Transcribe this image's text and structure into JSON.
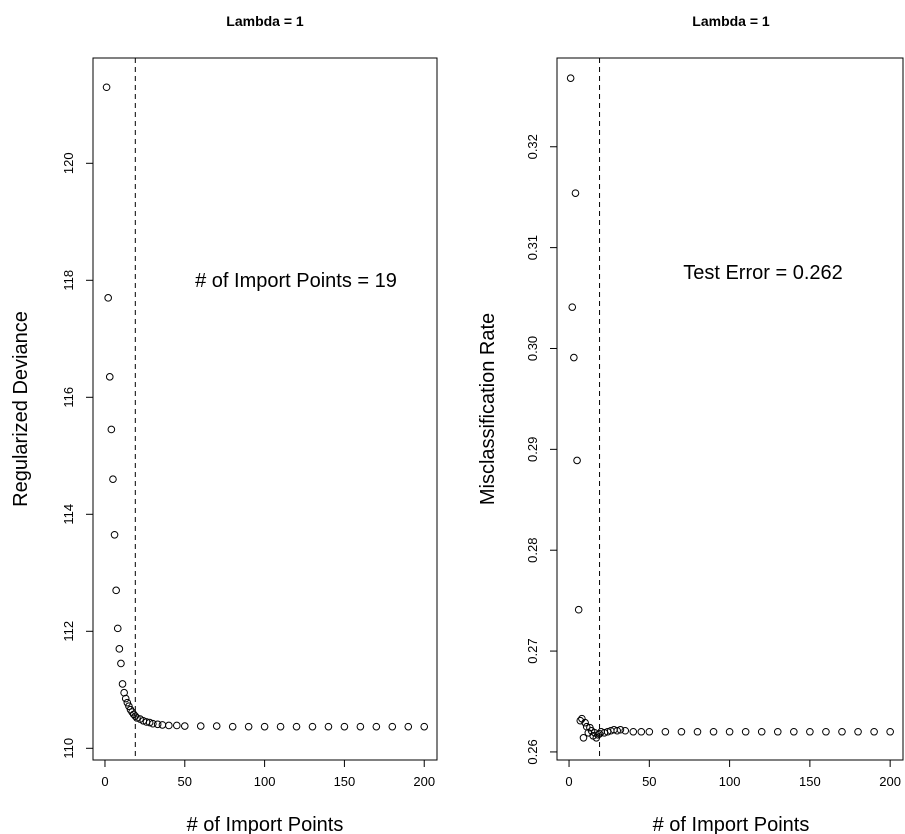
{
  "chart_data": [
    {
      "type": "scatter",
      "title": "Lambda = 1",
      "xlabel": "# of Import Points",
      "ylabel": "Regularized Deviance",
      "xlim": [
        -7.5,
        208
      ],
      "ylim": [
        109.8,
        121.8
      ],
      "xticks": [
        0,
        50,
        100,
        150,
        200
      ],
      "yticks": [
        110,
        112,
        114,
        116,
        118,
        120
      ],
      "vline_x": 19,
      "annotation": "# of Import Points = 19",
      "grid": false,
      "series": [
        {
          "x": [
            1,
            2,
            3,
            4,
            5,
            6,
            7,
            8,
            9,
            10,
            11,
            12,
            13,
            14,
            15,
            16,
            17,
            18,
            19,
            20,
            22,
            24,
            26,
            28,
            30,
            33,
            36,
            40,
            45,
            50,
            60,
            70,
            80,
            90,
            100,
            110,
            120,
            130,
            140,
            150,
            160,
            170,
            180,
            190,
            200
          ],
          "y": [
            121.3,
            117.7,
            116.35,
            115.45,
            114.6,
            113.65,
            112.7,
            112.05,
            111.7,
            111.45,
            111.1,
            110.95,
            110.85,
            110.78,
            110.72,
            110.66,
            110.62,
            110.58,
            110.55,
            110.52,
            110.5,
            110.47,
            110.45,
            110.44,
            110.42,
            110.41,
            110.4,
            110.39,
            110.39,
            110.38,
            110.38,
            110.38,
            110.37,
            110.37,
            110.37,
            110.37,
            110.37,
            110.37,
            110.37,
            110.37,
            110.37,
            110.37,
            110.37,
            110.37,
            110.37
          ]
        }
      ]
    },
    {
      "type": "scatter",
      "title": "Lambda = 1",
      "xlabel": "# of Import Points",
      "ylabel": "Misclassification Rate",
      "xlim": [
        -7.5,
        208
      ],
      "ylim": [
        0.2592,
        0.3288
      ],
      "xticks": [
        0,
        50,
        100,
        150,
        200
      ],
      "yticks": [
        "0.26",
        "0.27",
        "0.28",
        "0.29",
        "0.30",
        "0.31",
        "0.32"
      ],
      "vline_x": 19,
      "annotation": "Test Error = 0.262",
      "grid": false,
      "series": [
        {
          "x": [
            1,
            2,
            3,
            4,
            5,
            6,
            7,
            8,
            9,
            10,
            11,
            12,
            13,
            14,
            15,
            16,
            17,
            18,
            19,
            20,
            22,
            24,
            26,
            28,
            30,
            32,
            35,
            40,
            45,
            50,
            60,
            70,
            80,
            90,
            100,
            110,
            120,
            130,
            140,
            150,
            160,
            170,
            180,
            190,
            200
          ],
          "y": [
            0.3268,
            0.3041,
            0.2991,
            0.3154,
            0.2889,
            0.2741,
            0.2631,
            0.2633,
            0.2614,
            0.2629,
            0.2625,
            0.2619,
            0.2624,
            0.2621,
            0.2616,
            0.2619,
            0.2614,
            0.2617,
            0.2618,
            0.262,
            0.2619,
            0.262,
            0.2621,
            0.2622,
            0.2621,
            0.2622,
            0.2621,
            0.262,
            0.262,
            0.262,
            0.262,
            0.262,
            0.262,
            0.262,
            0.262,
            0.262,
            0.262,
            0.262,
            0.262,
            0.262,
            0.262,
            0.262,
            0.262,
            0.262,
            0.262
          ]
        }
      ]
    }
  ]
}
